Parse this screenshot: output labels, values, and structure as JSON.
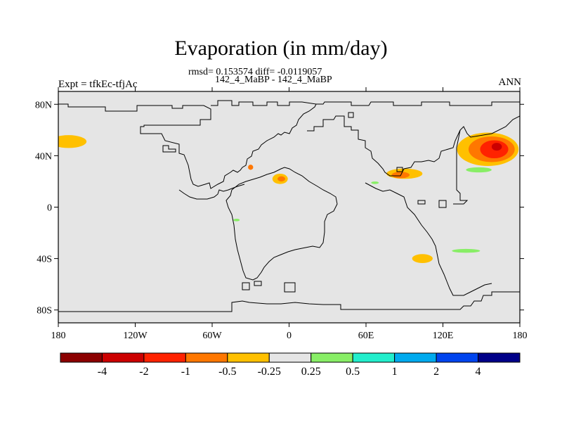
{
  "chart_data": {
    "type": "contour-map",
    "title": "Evaporation (in mm/day)",
    "subtitle_stats": "rmsd= 0.153574 diff= -0.0119057",
    "subtitle_cases": "142_4_MaBP - 142_4_MaBP",
    "left_label": "Expt = tfkEc-tfjAc",
    "right_label": "ANN",
    "x_ticks": [
      "180",
      "120W",
      "60W",
      "0",
      "60E",
      "120E",
      "180"
    ],
    "x_tick_values": [
      -180,
      -120,
      -60,
      0,
      60,
      120,
      180
    ],
    "y_ticks": [
      "80N",
      "40N",
      "0",
      "40S",
      "80S"
    ],
    "y_tick_values": [
      80,
      40,
      0,
      -40,
      -80
    ],
    "xlim": [
      -180,
      180
    ],
    "ylim": [
      -90,
      90
    ],
    "colorbar": {
      "labels": [
        "-4",
        "-2",
        "-1",
        "-0.5",
        "-0.25",
        "0.25",
        "0.5",
        "1",
        "2",
        "4"
      ],
      "colors": [
        "#8b0000",
        "#cc0000",
        "#ff2200",
        "#ff7700",
        "#ffc000",
        "#e5e5e5",
        "#88ee66",
        "#22eecc",
        "#00aaee",
        "#0044ee",
        "#000088"
      ]
    },
    "features": [
      {
        "name": "NE Pacific negative band",
        "level": "-0.5",
        "color": "#ffc000",
        "lon": -172,
        "lat": 51,
        "rx": 14,
        "ry": 5
      },
      {
        "name": "Kuroshio negative core",
        "level": "-0.5",
        "color": "#ffc000",
        "lon": 155,
        "lat": 45,
        "rx": 24,
        "ry": 13
      },
      {
        "name": "Kuroshio negative core",
        "level": "-1",
        "color": "#ff7700",
        "lon": 158,
        "lat": 45,
        "rx": 18,
        "ry": 10
      },
      {
        "name": "Kuroshio negative core",
        "level": "-2",
        "color": "#ff2200",
        "lon": 160,
        "lat": 45,
        "rx": 11,
        "ry": 7
      },
      {
        "name": "Kuroshio negative core",
        "level": "-4",
        "color": "#cc0000",
        "lon": 162,
        "lat": 47,
        "rx": 4,
        "ry": 3
      },
      {
        "name": "Tethys negative band",
        "level": "-0.5",
        "color": "#ffc000",
        "lon": 90,
        "lat": 26,
        "rx": 14,
        "ry": 4
      },
      {
        "name": "Tethys negative band",
        "level": "-1",
        "color": "#ff7700",
        "lon": 87,
        "lat": 25,
        "rx": 7,
        "ry": 2.5
      },
      {
        "name": "Atlantic negative patch",
        "level": "-0.5",
        "color": "#ffc000",
        "lon": -7,
        "lat": 22,
        "rx": 6,
        "ry": 4
      },
      {
        "name": "Atlantic negative patch",
        "level": "-1",
        "color": "#ff7700",
        "lon": -6,
        "lat": 22,
        "rx": 3,
        "ry": 2
      },
      {
        "name": "South Indian negative patch",
        "level": "-0.5",
        "color": "#ffc000",
        "lon": 104,
        "lat": -40,
        "rx": 8,
        "ry": 3.5
      },
      {
        "name": "Gulf negative spot",
        "level": "-0.5",
        "color": "#ff7700",
        "lon": -30,
        "lat": 31,
        "rx": 2,
        "ry": 2
      },
      {
        "name": "NW Pacific positive",
        "level": "0.25",
        "color": "#88ee66",
        "lon": 148,
        "lat": 29,
        "rx": 10,
        "ry": 2
      },
      {
        "name": "Southern positive",
        "level": "0.25",
        "color": "#88ee66",
        "lon": 138,
        "lat": -34,
        "rx": 11,
        "ry": 1.5
      },
      {
        "name": "Equatorial positive",
        "level": "0.25",
        "color": "#88ee66",
        "lon": -41,
        "lat": -10,
        "rx": 2.5,
        "ry": 1
      },
      {
        "name": "Tethys positive",
        "level": "0.25",
        "color": "#88ee66",
        "lon": 67,
        "lat": 19,
        "rx": 3,
        "ry": 1
      }
    ]
  }
}
